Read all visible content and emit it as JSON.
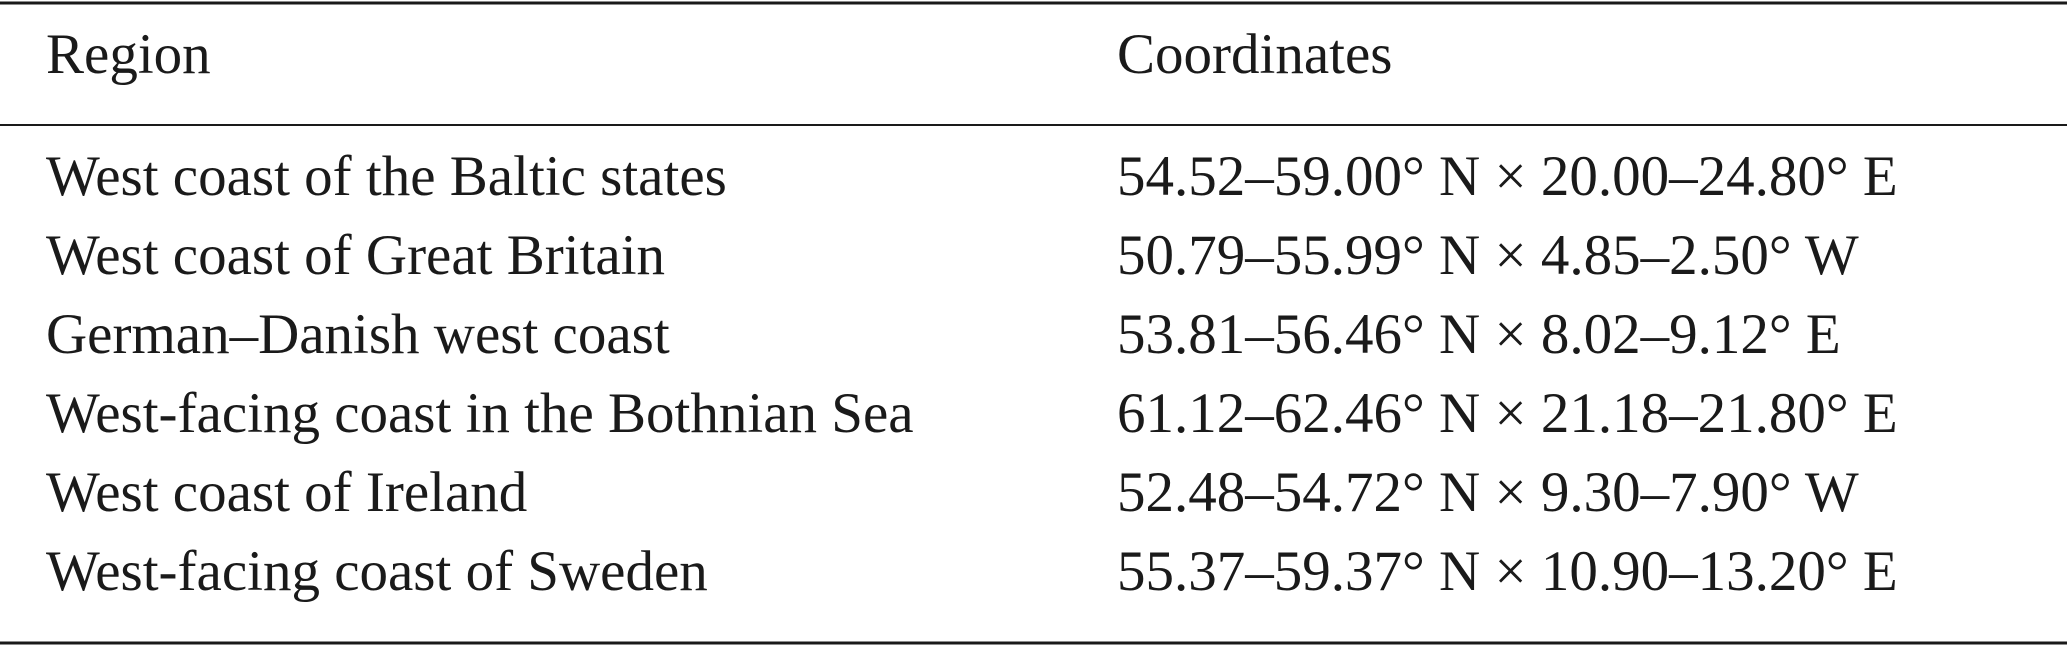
{
  "table": {
    "header": [
      "Region",
      "Coordinates"
    ],
    "rows": [
      [
        "West coast of the Baltic states",
        "54.52–59.00° N × 20.00–24.80° E"
      ],
      [
        "West coast of Great Britain",
        "50.79–55.99° N × 4.85–2.50° W"
      ],
      [
        "German–Danish west coast",
        "53.81–56.46° N × 8.02–9.12° E"
      ],
      [
        "West-facing coast in the Bothnian Sea",
        "61.12–62.46° N ×  21.18–21.80° E"
      ],
      [
        "West coast of Ireland",
        "52.48–54.72° N × 9.30–7.90° W"
      ],
      [
        "West-facing coast of Sweden",
        "55.37–59.37° N × 10.90–13.20° E"
      ]
    ]
  }
}
